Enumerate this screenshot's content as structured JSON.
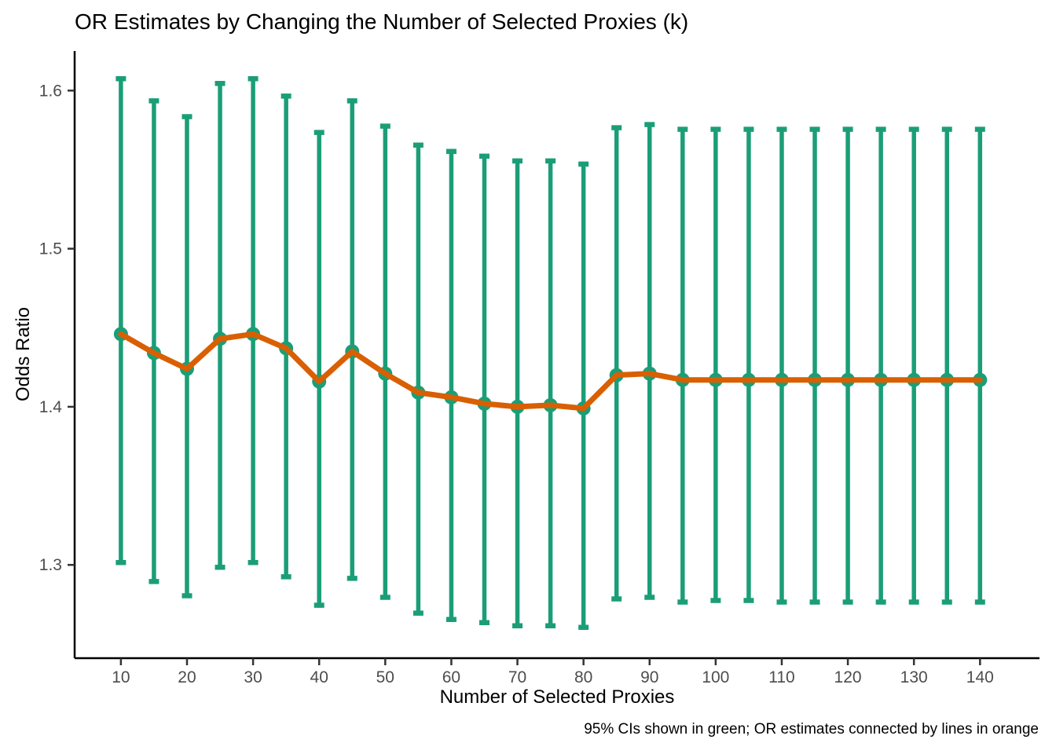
{
  "chart_data": {
    "type": "line",
    "title": "OR Estimates by Changing the Number of Selected Proxies (k)",
    "xlabel": "Number of Selected Proxies",
    "ylabel": "Odds Ratio",
    "caption": "95% CIs shown in green; OR estimates connected by lines in orange",
    "x": [
      10,
      15,
      20,
      25,
      30,
      35,
      40,
      45,
      50,
      55,
      60,
      65,
      70,
      75,
      80,
      85,
      90,
      95,
      100,
      105,
      110,
      115,
      120,
      125,
      130,
      135,
      140
    ],
    "series": [
      {
        "name": "OR estimate",
        "values": [
          1.446,
          1.434,
          1.424,
          1.443,
          1.446,
          1.437,
          1.416,
          1.435,
          1.421,
          1.409,
          1.406,
          1.402,
          1.4,
          1.401,
          1.399,
          1.42,
          1.421,
          1.417,
          1.417,
          1.417,
          1.417,
          1.417,
          1.417,
          1.417,
          1.417,
          1.417,
          1.417
        ]
      },
      {
        "name": "95% CI lower",
        "values": [
          1.3,
          1.288,
          1.279,
          1.297,
          1.3,
          1.291,
          1.273,
          1.29,
          1.278,
          1.268,
          1.264,
          1.262,
          1.26,
          1.26,
          1.259,
          1.277,
          1.278,
          1.275,
          1.276,
          1.276,
          1.275,
          1.275,
          1.275,
          1.275,
          1.275,
          1.275,
          1.275
        ]
      },
      {
        "name": "95% CI upper",
        "values": [
          1.609,
          1.595,
          1.585,
          1.606,
          1.609,
          1.598,
          1.575,
          1.595,
          1.579,
          1.567,
          1.563,
          1.56,
          1.557,
          1.557,
          1.555,
          1.578,
          1.58,
          1.577,
          1.577,
          1.577,
          1.577,
          1.577,
          1.577,
          1.577,
          1.577,
          1.577,
          1.577
        ]
      }
    ],
    "x_ticks": [
      10,
      20,
      30,
      40,
      50,
      60,
      70,
      80,
      90,
      100,
      110,
      120,
      130,
      140
    ],
    "y_ticks": [
      1.3,
      1.4,
      1.5,
      1.6
    ],
    "xlim": [
      3,
      149
    ],
    "ylim": [
      1.241,
      1.625
    ],
    "grid": false,
    "legend_position": "none",
    "colors": {
      "ci_green": "#1B9E77",
      "line_orange": "#D95F02",
      "tick_label": "#4D4D4D",
      "axis": "#000000"
    }
  }
}
